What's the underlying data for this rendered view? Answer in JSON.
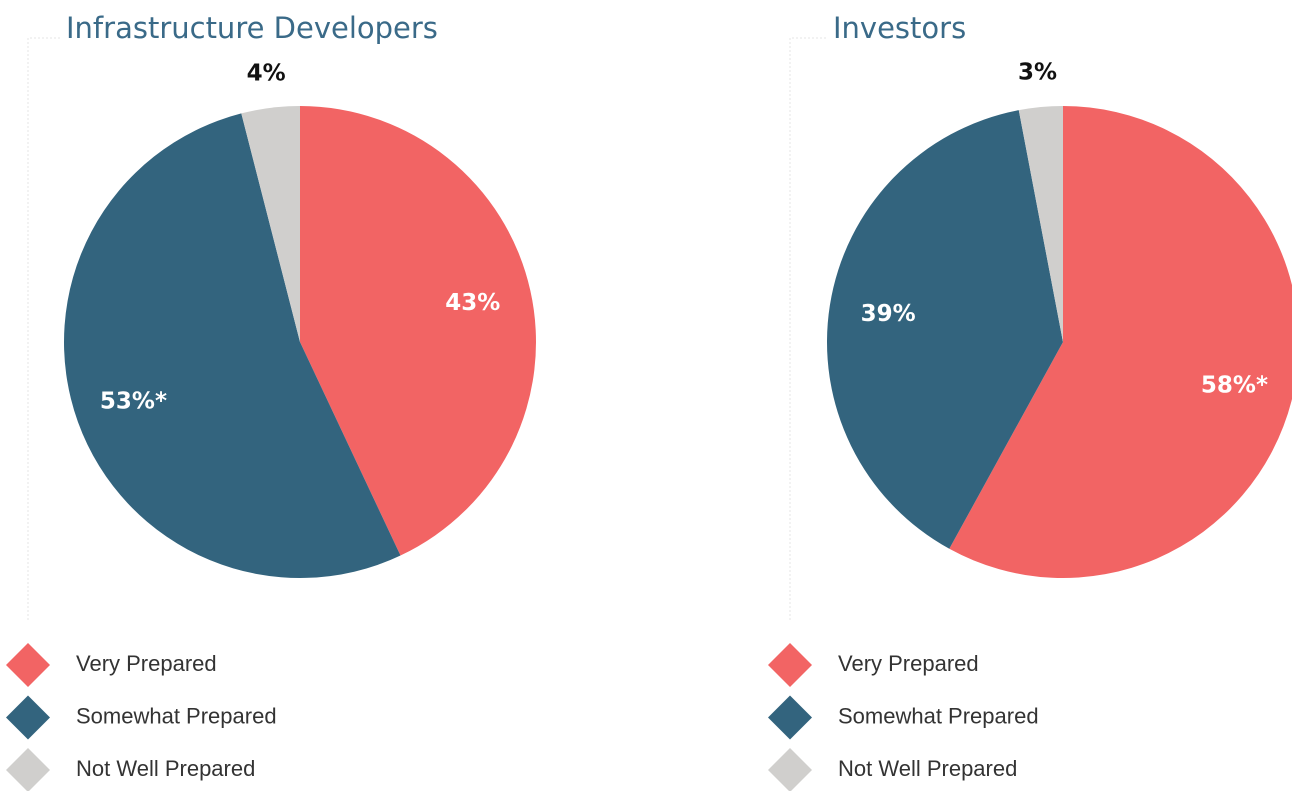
{
  "chart_data": [
    {
      "type": "pie",
      "title": "Infrastructure Developers",
      "categories": [
        "Very Prepared",
        "Somewhat Prepared",
        "Not Well Prepared"
      ],
      "values": [
        43,
        53,
        4
      ],
      "value_labels": [
        "43%",
        "53%*",
        "4%"
      ],
      "colors": [
        "#f26464",
        "#33647e",
        "#d0cfcd"
      ]
    },
    {
      "type": "pie",
      "title": "Investors",
      "categories": [
        "Very Prepared",
        "Somewhat Prepared",
        "Not Well Prepared"
      ],
      "values": [
        58,
        39,
        3
      ],
      "value_labels": [
        "58%*",
        "39%",
        "3%"
      ],
      "colors": [
        "#f26464",
        "#33647e",
        "#d0cfcd"
      ]
    }
  ]
}
